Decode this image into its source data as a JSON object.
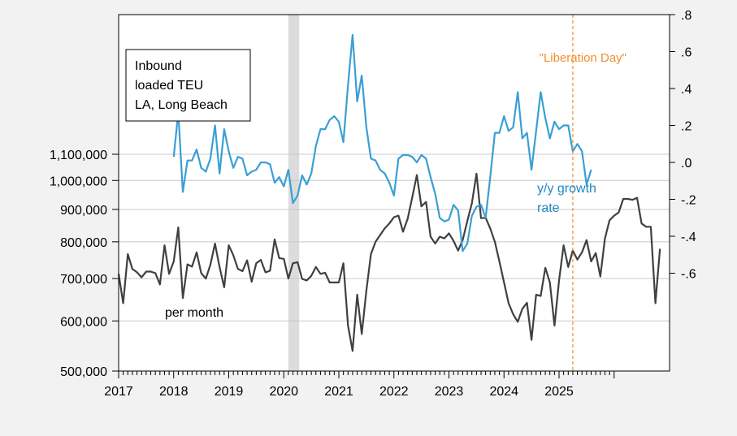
{
  "chart_data": {
    "type": "line",
    "title": "",
    "xlabel": "",
    "ylabel_left": "",
    "ylabel_right": "",
    "x_start": "2017-01",
    "x_ticks": [
      "2017",
      "2018",
      "2019",
      "2020",
      "2021",
      "2022",
      "2023",
      "2024",
      "2025"
    ],
    "x_range": [
      "2017-01",
      "2025-12"
    ],
    "y_left": {
      "scale": "log",
      "range": [
        500000,
        1300000
      ],
      "ticks": [
        500000,
        600000,
        700000,
        800000,
        900000,
        1000000,
        1100000
      ],
      "tick_labels": [
        "500,000",
        "600,000",
        "700,000",
        "800,000",
        "900,000",
        "1,000,000",
        "1,100,000"
      ]
    },
    "y_right": {
      "range": [
        -0.8,
        0.8
      ],
      "ticks": [
        0.8,
        0.6,
        0.4,
        0.2,
        0.0,
        -0.2,
        -0.4,
        -0.6
      ],
      "tick_labels": [
        ".8",
        ".6",
        ".4",
        ".2",
        ".0",
        "-.2",
        "-.4",
        "-.6"
      ]
    },
    "grid": true,
    "recession_shading": {
      "start": "2020-02",
      "end": "2020-04",
      "color": "#dcdcdc"
    },
    "vline": {
      "date": "2025-04",
      "label": "\"Liberation Day\"",
      "color": "#f28e2b"
    },
    "legend_box": [
      "Inbound",
      "loaded TEU",
      "LA, Long Beach"
    ],
    "annotations": {
      "level_label": "per month",
      "growth_label_line1": "y/y growth",
      "growth_label_line2": "rate"
    },
    "series": [
      {
        "name": "Inbound loaded TEU per month",
        "axis": "left",
        "color": "#404040",
        "start": "2017-01",
        "values": [
          712000,
          640000,
          765000,
          725000,
          716000,
          703000,
          718000,
          718000,
          714000,
          685000,
          790000,
          712000,
          745000,
          843000,
          652000,
          737000,
          731000,
          770000,
          714000,
          700000,
          736000,
          795000,
          730000,
          678000,
          790000,
          762000,
          725000,
          719000,
          748000,
          692000,
          740000,
          749000,
          716000,
          720000,
          807000,
          754000,
          752000,
          700000,
          740000,
          743000,
          699000,
          695000,
          707000,
          730000,
          712000,
          715000,
          690000,
          690000,
          690000,
          740000,
          590000,
          538000,
          660000,
          572000,
          670000,
          765000,
          800000,
          820000,
          840000,
          855000,
          875000,
          880000,
          830000,
          870000,
          940000,
          1020000,
          910000,
          925000,
          815000,
          795000,
          815000,
          810000,
          825000,
          803000,
          775000,
          805000,
          863000,
          920000,
          1025000,
          872000,
          873000,
          840000,
          800000,
          745000,
          690000,
          640000,
          615000,
          598000,
          627000,
          641000,
          560000,
          660000,
          657000,
          728000,
          690000,
          590000,
          695000,
          790000,
          730000,
          775000,
          750000,
          770000,
          805000,
          745000,
          768000,
          705000,
          810000,
          865000,
          880000,
          890000,
          935000,
          935000,
          932000,
          939000,
          855000,
          845000,
          845000,
          640000,
          780000
        ]
      },
      {
        "name": "y/y growth rate",
        "axis": "right",
        "color": "#3a9fd4",
        "start": "2018-01",
        "values": [
          0.03,
          0.27,
          -0.16,
          0.01,
          0.01,
          0.07,
          -0.03,
          -0.05,
          0.02,
          0.2,
          -0.06,
          0.18,
          0.06,
          -0.03,
          0.03,
          0.02,
          -0.07,
          -0.05,
          -0.04,
          0.0,
          0.0,
          -0.01,
          -0.11,
          -0.08,
          -0.13,
          -0.04,
          -0.22,
          -0.18,
          -0.07,
          -0.12,
          -0.06,
          0.09,
          0.18,
          0.18,
          0.23,
          0.25,
          0.22,
          0.11,
          0.42,
          0.69,
          0.33,
          0.47,
          0.19,
          0.02,
          0.01,
          -0.04,
          -0.06,
          -0.11,
          -0.18,
          0.02,
          0.04,
          0.04,
          0.03,
          0.0,
          0.04,
          0.02,
          -0.08,
          -0.17,
          -0.3,
          -0.32,
          -0.31,
          -0.23,
          -0.26,
          -0.48,
          -0.44,
          -0.29,
          -0.24,
          -0.23,
          -0.3,
          -0.08,
          0.16,
          0.16,
          0.25,
          0.17,
          0.19,
          0.38,
          0.13,
          0.16,
          -0.04,
          0.17,
          0.38,
          0.24,
          0.13,
          0.22,
          0.18,
          0.2,
          0.2,
          0.06,
          0.1,
          0.06,
          -0.12,
          -0.04
        ]
      }
    ]
  }
}
